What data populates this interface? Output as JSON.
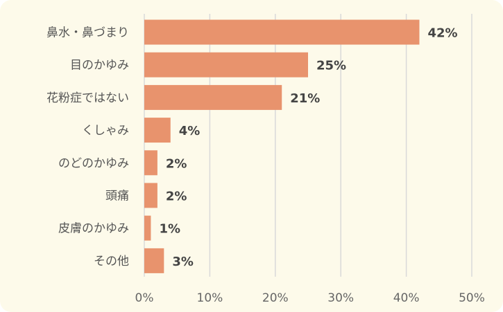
{
  "chart_data": {
    "type": "bar",
    "orientation": "horizontal",
    "categories": [
      "鼻水・鼻づまり",
      "目のかゆみ",
      "花粉症ではない",
      "くしゃみ",
      "のどのかゆみ",
      "頭痛",
      "皮膚のかゆみ",
      "その他"
    ],
    "values": [
      42,
      25,
      21,
      4,
      2,
      2,
      1,
      3
    ],
    "value_labels": [
      "42%",
      "25%",
      "21%",
      "4%",
      "2%",
      "2%",
      "1%",
      "3%"
    ],
    "x_ticks": [
      "0%",
      "10%",
      "20%",
      "30%",
      "40%",
      "50%"
    ],
    "xlim": [
      0,
      50
    ],
    "grid": true,
    "legend": "none",
    "colors": {
      "bar": "#e8936d",
      "grid": "#d9d9d9",
      "background": "#fdfaea"
    }
  }
}
